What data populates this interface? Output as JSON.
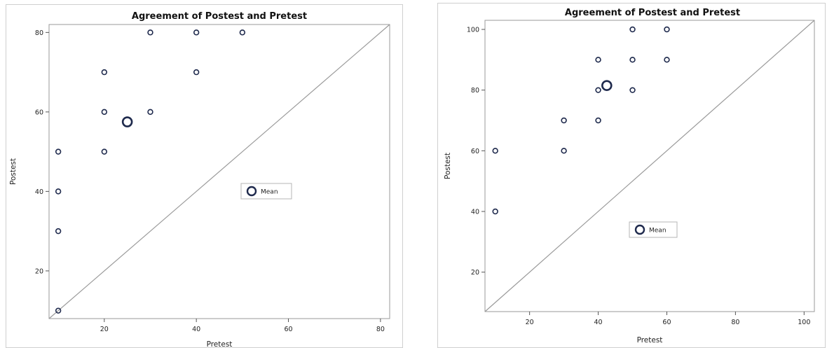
{
  "chart_data": [
    {
      "type": "scatter",
      "title": "Agreement of Postest and Pretest",
      "xlabel": "Pretest",
      "ylabel": "Postest",
      "xlim": [
        8,
        82
      ],
      "ylim": [
        8,
        82
      ],
      "xticks": [
        20,
        40,
        60,
        80
      ],
      "yticks": [
        20,
        40,
        60,
        80
      ],
      "reference_line": "y = x",
      "grid": false,
      "series": [
        {
          "values": [
            {
              "x": 10,
              "y": 10
            },
            {
              "x": 10,
              "y": 30
            },
            {
              "x": 10,
              "y": 40
            },
            {
              "x": 10,
              "y": 50
            },
            {
              "x": 20,
              "y": 50
            },
            {
              "x": 20,
              "y": 60
            },
            {
              "x": 20,
              "y": 70
            },
            {
              "x": 30,
              "y": 60
            },
            {
              "x": 30,
              "y": 80
            },
            {
              "x": 40,
              "y": 70
            },
            {
              "x": 40,
              "y": 80
            },
            {
              "x": 50,
              "y": 80
            }
          ]
        },
        {
          "name": "Mean",
          "values": [
            {
              "x": 25,
              "y": 57.5
            }
          ]
        }
      ],
      "legend": {
        "label": "Mean",
        "placement": "center-right"
      }
    },
    {
      "type": "scatter",
      "title": "Agreement of Postest and Pretest",
      "xlabel": "Pretest",
      "ylabel": "Postest",
      "xlim": [
        7,
        103
      ],
      "ylim": [
        7,
        103
      ],
      "xticks": [
        20,
        40,
        60,
        80,
        100
      ],
      "yticks": [
        20,
        40,
        60,
        80,
        100
      ],
      "reference_line": "y = x",
      "grid": false,
      "series": [
        {
          "values": [
            {
              "x": 10,
              "y": 40
            },
            {
              "x": 10,
              "y": 60
            },
            {
              "x": 30,
              "y": 60
            },
            {
              "x": 30,
              "y": 70
            },
            {
              "x": 40,
              "y": 70
            },
            {
              "x": 40,
              "y": 80
            },
            {
              "x": 40,
              "y": 90
            },
            {
              "x": 50,
              "y": 80
            },
            {
              "x": 50,
              "y": 90
            },
            {
              "x": 50,
              "y": 100
            },
            {
              "x": 60,
              "y": 90
            },
            {
              "x": 60,
              "y": 100
            }
          ]
        },
        {
          "name": "Mean",
          "values": [
            {
              "x": 42.5,
              "y": 81.5
            }
          ]
        }
      ],
      "legend": {
        "label": "Mean",
        "placement": "lower-middle"
      }
    }
  ]
}
